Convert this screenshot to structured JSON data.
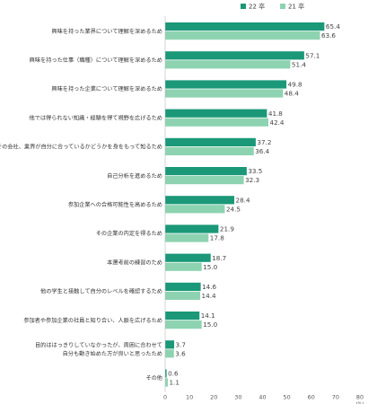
{
  "chart_data": {
    "type": "bar",
    "orientation": "horizontal",
    "legend_position": "top-right",
    "grid": false,
    "xlim": [
      0,
      80
    ],
    "xticks": [
      "0",
      "10",
      "20",
      "30",
      "40",
      "50",
      "60",
      "70",
      "80"
    ],
    "x_unit": "(%)",
    "colors": {
      "22": "#1a9878",
      "21": "#8ed3b1"
    },
    "series": [
      {
        "name": "22 卒",
        "key": "22"
      },
      {
        "name": "21 卒",
        "key": "21"
      }
    ],
    "categories": [
      "興味を持った業界について理解を深めるため",
      "興味を持った仕事（職種）について理解を深めるため",
      "興味を持った企業について理解を深めるため",
      "他では得られない知識・経験を得て視野を広げるため",
      "その会社、業界が自分に合っているかどうかを身をもって知るため",
      "自己分析を進めるため",
      "参加企業への合格可能性を高めるため",
      "その企業の内定を得るため",
      "本選考前の練習のため",
      "他の学生と接触して自分のレベルを確認するため",
      "参加者や参加企業の社員と知り合い、人脈を広げるため",
      "目的ははっきりしていなかったが、周囲に合わせて\n自分も動き始めた方が良いと思ったため",
      "その他"
    ],
    "values_22": [
      65.4,
      57.1,
      49.8,
      41.8,
      37.2,
      33.5,
      28.4,
      21.9,
      18.7,
      14.6,
      14.1,
      3.7,
      0.6
    ],
    "values_21": [
      63.6,
      51.4,
      48.4,
      42.4,
      36.4,
      32.3,
      24.5,
      17.8,
      15.0,
      14.4,
      15.0,
      3.6,
      1.1
    ]
  }
}
